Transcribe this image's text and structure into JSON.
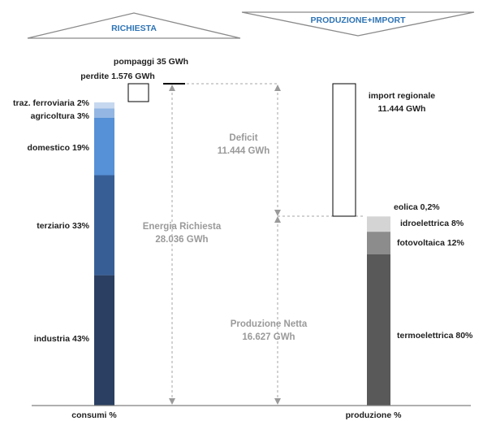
{
  "chart_data": {
    "type": "bar",
    "headers": {
      "left": "RICHIESTA",
      "right": "PRODUZIONE+IMPORT"
    },
    "unit": "GWh",
    "categories": [
      "consumi %",
      "produzione %"
    ],
    "consumi": {
      "segments": [
        {
          "label": "industria 43%",
          "value": 43,
          "color": "#2a3f61"
        },
        {
          "label": "terziario 33%",
          "value": 33,
          "color": "#375f96"
        },
        {
          "label": "domestico 19%",
          "value": 19,
          "color": "#5690d6"
        },
        {
          "label": "agricoltura 3%",
          "value": 3,
          "color": "#93b6e3"
        },
        {
          "label": "traz. ferroviaria 2%",
          "value": 2,
          "color": "#c6d8ef"
        }
      ],
      "extras": [
        {
          "label": "perdite 1.576 GWh",
          "value": 1576
        },
        {
          "label": "pompaggi 35 GWh",
          "value": 35
        }
      ]
    },
    "produzione": {
      "segments": [
        {
          "label": "termoelettrica 80%",
          "value": 80,
          "color": "#595959"
        },
        {
          "label": "fotovoltaica 12%",
          "value": 12,
          "color": "#8c8c8c"
        },
        {
          "label": "idroelettrica 8%",
          "value": 8,
          "color": "#d4d4d4"
        },
        {
          "label": "eolica 0,2%",
          "value": 0.2,
          "color": "#eeeeee"
        }
      ],
      "import": {
        "label_line1": "import regionale",
        "label_line2": "11.444 GWh",
        "value": 11444
      }
    },
    "annotations": {
      "deficit": {
        "line1": "Deficit",
        "line2": "11.444 GWh",
        "value": 11444
      },
      "energia_richiesta": {
        "line1": "Energia Richiesta",
        "line2": "28.036 GWh",
        "value": 28036
      },
      "produzione_netta": {
        "line1": "Produzione Netta",
        "line2": "16.627 GWh",
        "value": 16627
      }
    },
    "colors": {
      "header": "#2e74b5",
      "annotation": "#9a9a9a",
      "text": "#1f1f1f"
    }
  }
}
